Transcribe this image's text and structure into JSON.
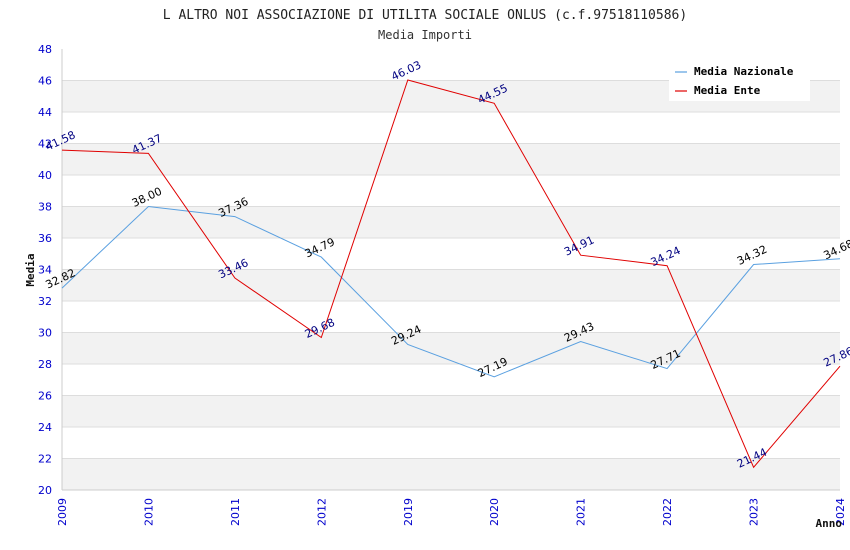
{
  "chart_data": {
    "type": "line",
    "title": "L ALTRO NOI ASSOCIAZIONE DI UTILITA SOCIALE ONLUS (c.f.97518110586)",
    "subtitle": "Media Importi",
    "xlabel": "Anno",
    "ylabel": "Media",
    "ylim": [
      20,
      48
    ],
    "yticks": [
      20,
      22,
      24,
      26,
      28,
      30,
      32,
      34,
      36,
      38,
      40,
      42,
      44,
      46,
      48
    ],
    "categories": [
      "2009",
      "2010",
      "2011",
      "2012",
      "2019",
      "2020",
      "2021",
      "2022",
      "2023",
      "2024"
    ],
    "grid": true,
    "legend_position": "top-right",
    "series": [
      {
        "name": "Media Nazionale",
        "color": "#5aa0e0",
        "label_color": "#000000",
        "values": [
          32.82,
          38.0,
          37.36,
          34.79,
          29.24,
          27.19,
          29.43,
          27.71,
          34.32,
          34.68
        ],
        "labels": [
          "32.82",
          "38.00",
          "37.36",
          "34.79",
          "29.24",
          "27.19",
          "29.43",
          "27.71",
          "34.32",
          "34.68"
        ]
      },
      {
        "name": "Media Ente",
        "color": "#e00000",
        "label_color": "#000080",
        "values": [
          41.58,
          41.37,
          33.46,
          29.68,
          46.03,
          44.55,
          34.91,
          34.24,
          21.44,
          27.86
        ],
        "labels": [
          "41.58",
          "41.37",
          "33.46",
          "29.68",
          "46.03",
          "44.55",
          "34.91",
          "34.24",
          "21.44",
          "27.86"
        ]
      }
    ]
  }
}
